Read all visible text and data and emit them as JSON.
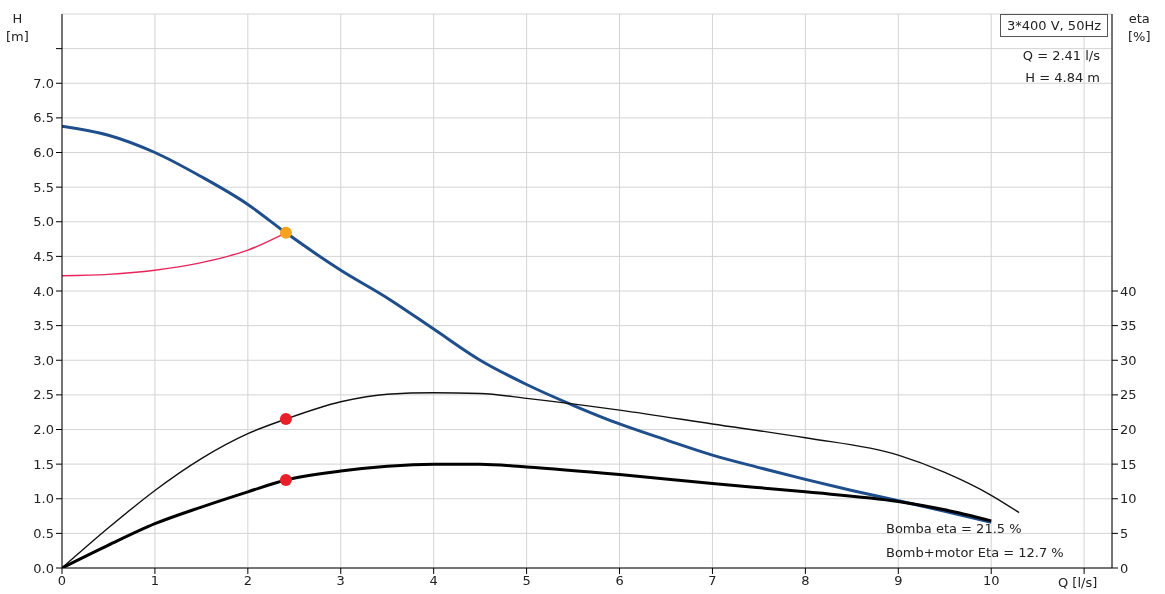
{
  "chart_data": {
    "type": "line",
    "xlabel": "Q [l/s]",
    "ylabel": "H [m]",
    "y2label": "eta [%]",
    "xlim": [
      0,
      11.3
    ],
    "xticks": [
      0,
      1,
      2,
      3,
      4,
      5,
      6,
      7,
      8,
      9,
      10,
      {
        "value": 11,
        "label": null
      }
    ],
    "ylim": [
      0,
      8
    ],
    "yticks": [
      {
        "value": 0,
        "label": "0.0"
      },
      0.5,
      {
        "value": 1,
        "label": "1.0"
      },
      1.5,
      {
        "value": 2,
        "label": "2.0"
      },
      2.5,
      {
        "value": 3,
        "label": "3.0"
      },
      3.5,
      {
        "value": 4,
        "label": "4.0"
      },
      4.5,
      {
        "value": 5,
        "label": "5.0"
      },
      5.5,
      {
        "value": 6,
        "label": "6.0"
      },
      6.5,
      {
        "value": 7,
        "label": "7.0"
      },
      {
        "value": 7.5,
        "label": null
      }
    ],
    "y2lim": [
      0,
      80
    ],
    "y2ticks": [
      0,
      5,
      10,
      15,
      20,
      25,
      30,
      35,
      40
    ],
    "grid": true,
    "line_style": "solid",
    "annotations": [
      "3*400 V, 50Hz",
      "Q = 2.41 l/s",
      "H = 4.84 m",
      "Bomba eta = 21.5 %",
      "Bomb+motor Eta = 12.7 %"
    ],
    "series": [
      {
        "color": "#e8245a",
        "x": [
          0,
          0.5,
          1,
          1.5,
          2,
          2.41
        ],
        "values": [
          4.22,
          4.24,
          4.3,
          4.41,
          4.59,
          4.84
        ]
      },
      {
        "color": "#1f4e8c",
        "x": [
          0,
          0.5,
          1,
          1.5,
          2,
          2.41,
          3,
          3.5,
          4,
          4.5,
          5,
          5.5,
          6,
          6.5,
          7,
          7.5,
          8,
          8.5,
          9,
          9.5,
          10
        ],
        "values": [
          6.38,
          6.25,
          6.0,
          5.65,
          5.25,
          4.84,
          4.3,
          3.9,
          3.45,
          3.0,
          2.65,
          2.35,
          2.08,
          1.85,
          1.63,
          1.45,
          1.28,
          1.12,
          0.97,
          0.82,
          0.66
        ]
      },
      {
        "axis": "y2",
        "color": "#111111",
        "x": [
          0,
          0.5,
          1,
          1.5,
          2,
          2.41,
          3,
          3.5,
          4,
          4.5,
          5,
          6,
          7,
          8,
          9,
          9.5,
          10,
          10.3
        ],
        "values": [
          0,
          5.8,
          11.2,
          15.8,
          19.4,
          21.5,
          24,
          25.1,
          25.3,
          25.2,
          24.5,
          22.8,
          20.8,
          18.8,
          16.3,
          13.8,
          10.5,
          8
        ]
      },
      {
        "axis": "y2",
        "color": "#000000",
        "x": [
          0,
          0.5,
          1,
          1.5,
          2,
          2.41,
          3,
          3.5,
          4,
          4.5,
          5,
          6,
          7,
          8,
          9,
          9.5,
          10
        ],
        "values": [
          0,
          3.3,
          6.4,
          8.8,
          11,
          12.7,
          14,
          14.7,
          15,
          15,
          14.6,
          13.5,
          12.2,
          11,
          9.6,
          8.4,
          6.8
        ]
      },
      {
        "type": "scatter",
        "color": "#f5a21c",
        "x": [
          2.41
        ],
        "values": [
          4.84
        ]
      },
      {
        "type": "scatter",
        "axis": "y2",
        "color": "#e8202a",
        "x": [
          2.41,
          2.41
        ],
        "values": [
          21.5,
          12.7
        ]
      }
    ]
  }
}
